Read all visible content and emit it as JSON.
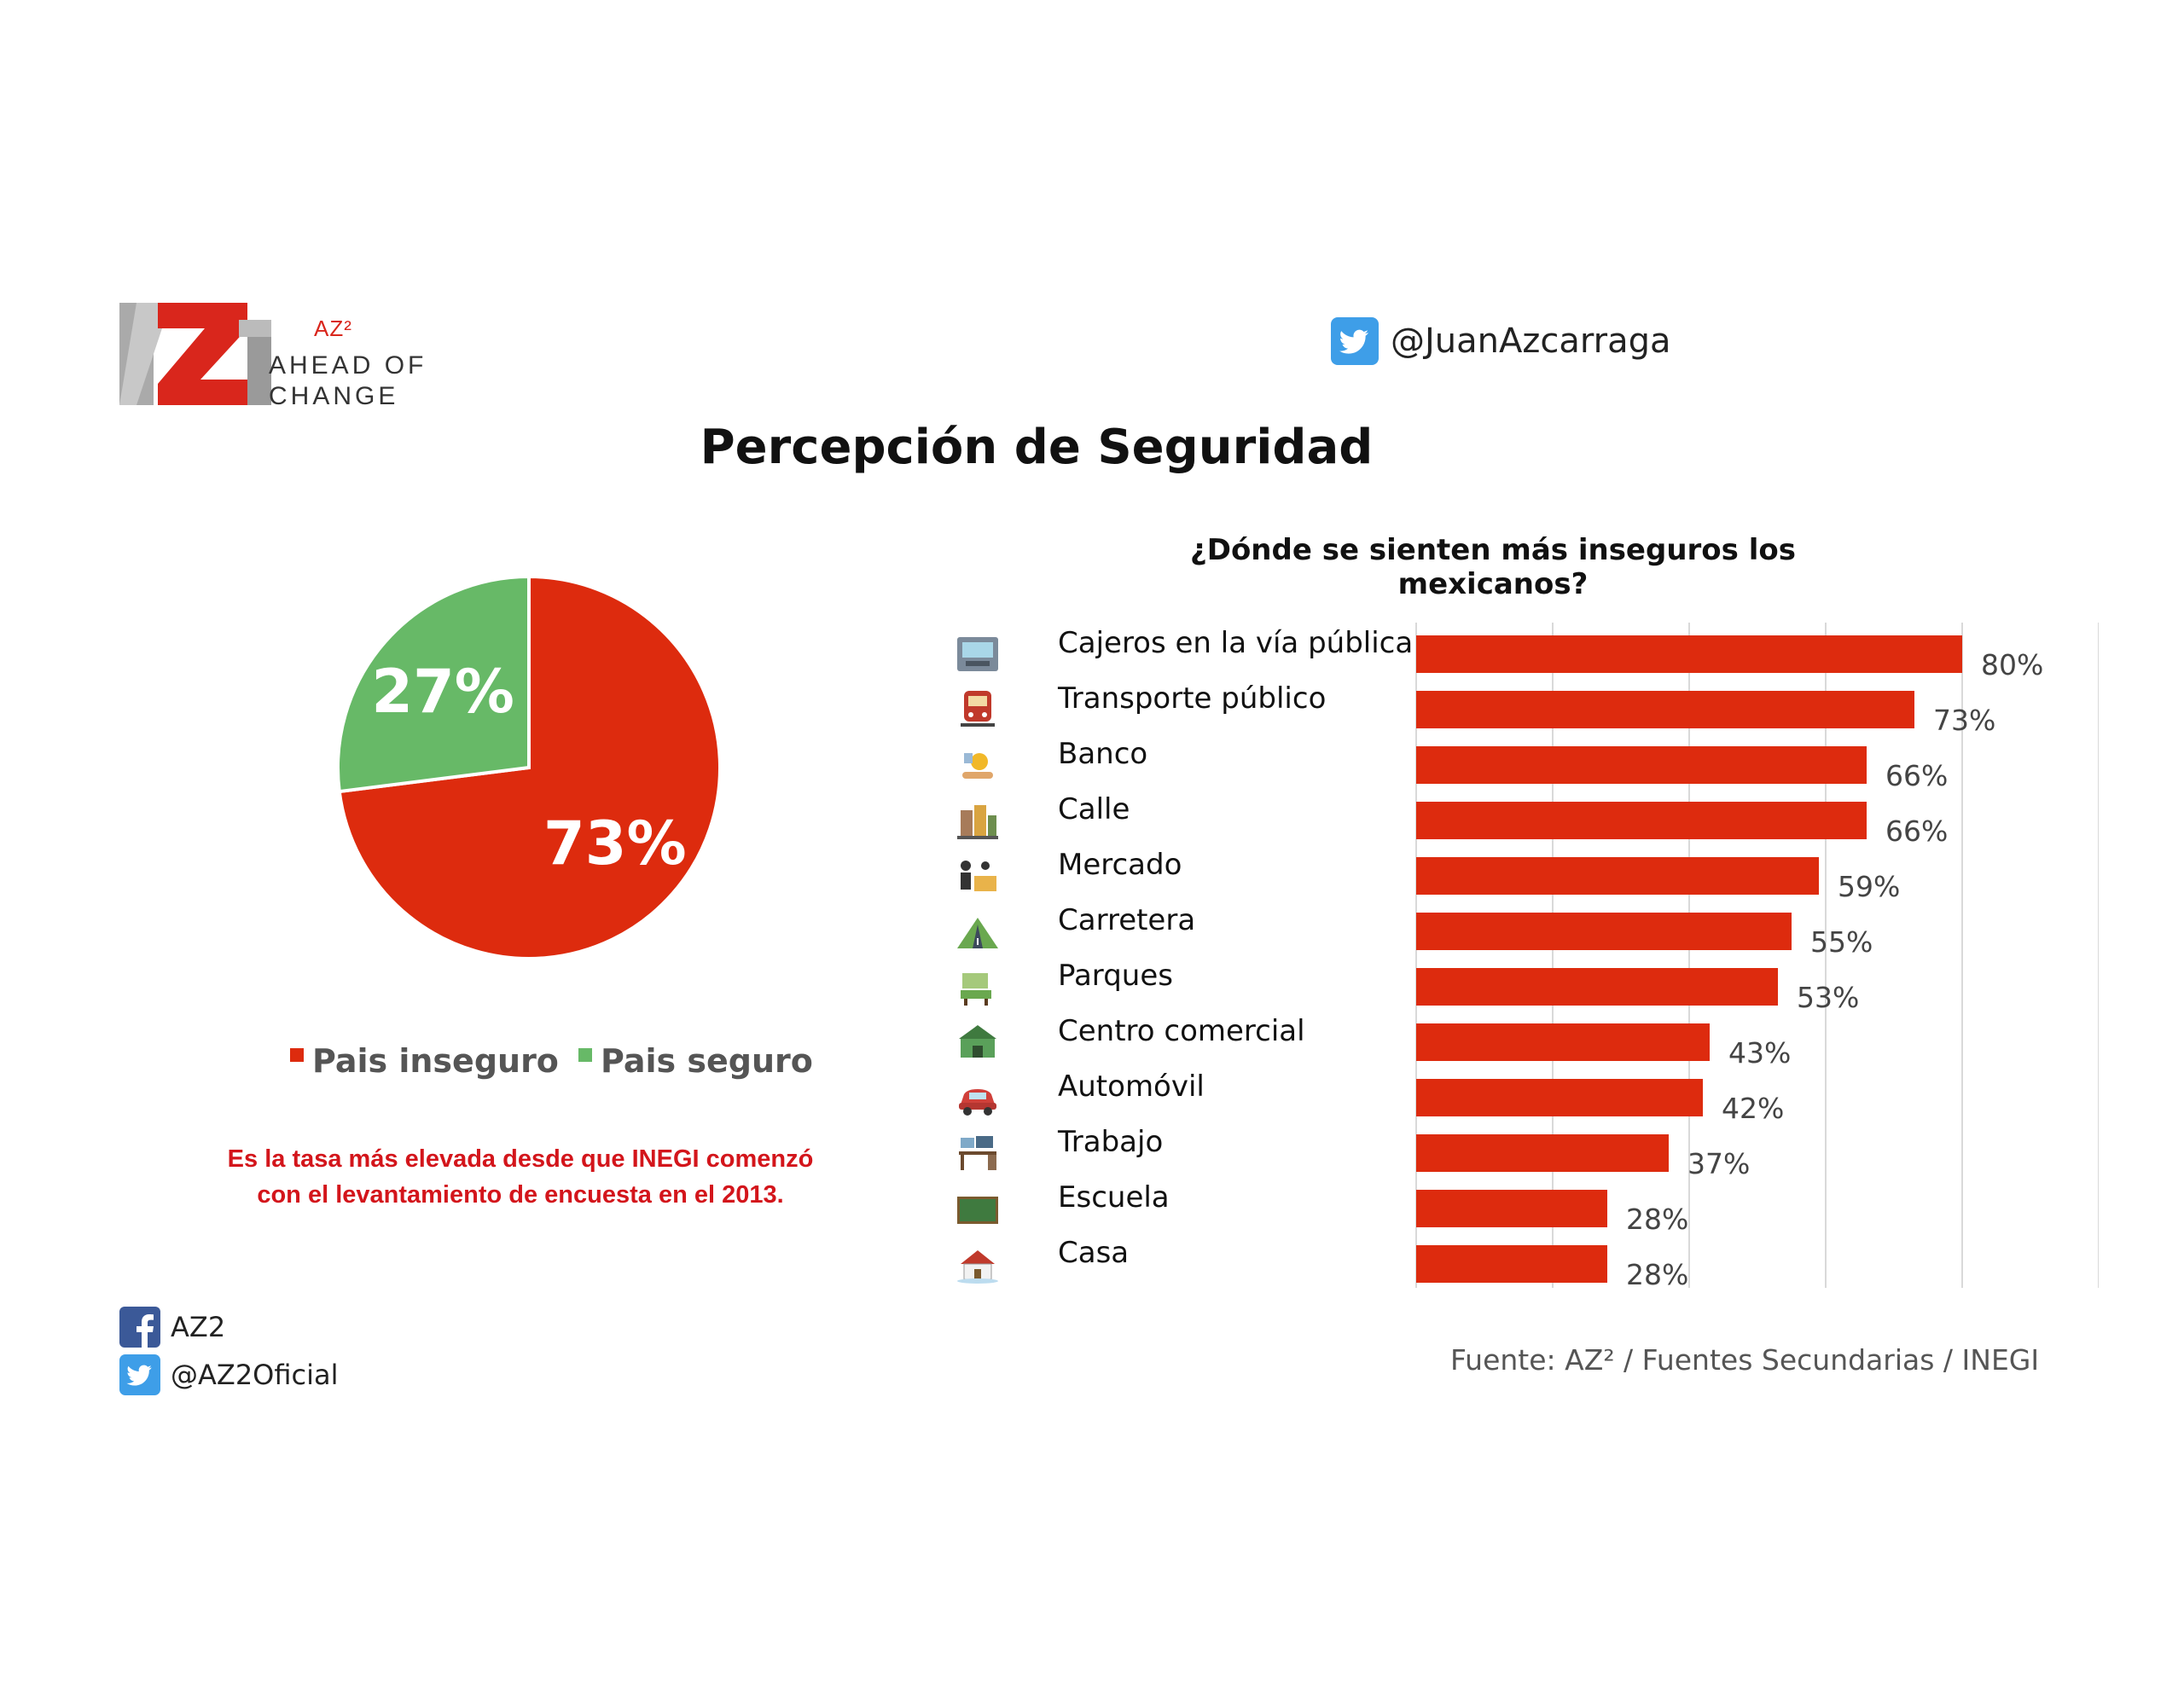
{
  "logo": {
    "small_text": "AZ²",
    "line1": "AHEAD OF",
    "line2": "CHANGE",
    "icon": "az2-logo"
  },
  "twitter_handle": {
    "icon": "twitter-icon",
    "text": "@JuanAzcarraga"
  },
  "title": "Percepción de Seguridad",
  "colors": {
    "red": "#dd2b0e",
    "green": "#67b967",
    "gray_text": "#555555"
  },
  "chart_data": [
    {
      "type": "pie",
      "title": "",
      "slices": [
        {
          "name": "Pais inseguro",
          "value": 73,
          "label": "73%",
          "color": "#dd2b0e"
        },
        {
          "name": "Pais seguro",
          "value": 27,
          "label": "27%",
          "color": "#67b967"
        }
      ],
      "legend_placement": "bottom"
    },
    {
      "type": "bar",
      "orientation": "horizontal",
      "title": "¿Dónde se sienten más inseguros los mexicanos?",
      "categories": [
        "Cajeros en la vía pública",
        "Transporte público",
        "Banco",
        "Calle",
        "Mercado",
        "Carretera",
        "Parques",
        "Centro comercial",
        "Automóvil",
        "Trabajo",
        "Escuela",
        "Casa"
      ],
      "values": [
        80,
        73,
        66,
        66,
        59,
        55,
        53,
        43,
        42,
        37,
        28,
        28
      ],
      "value_labels": [
        "80%",
        "73%",
        "66%",
        "66%",
        "59%",
        "55%",
        "53%",
        "43%",
        "42%",
        "37%",
        "28%",
        "28%"
      ],
      "icons": [
        "atm-icon",
        "train-icon",
        "bank-icon",
        "street-icon",
        "market-icon",
        "highway-icon",
        "park-icon",
        "mall-icon",
        "car-icon",
        "desk-icon",
        "chalkboard-icon",
        "house-icon"
      ],
      "xlim": [
        0,
        100
      ],
      "grid": true,
      "color": "#dd2b0e"
    }
  ],
  "note": {
    "line1": "Es la tasa más elevada desde que INEGI comenzó",
    "line2": "con el levantamiento de encuesta en el 2013."
  },
  "footer": {
    "facebook": {
      "icon": "facebook-icon",
      "text": "AZ2"
    },
    "twitter": {
      "icon": "twitter-icon",
      "text": "@AZ2Oficial"
    },
    "source": "Fuente: AZ² / Fuentes Secundarias / INEGI"
  }
}
